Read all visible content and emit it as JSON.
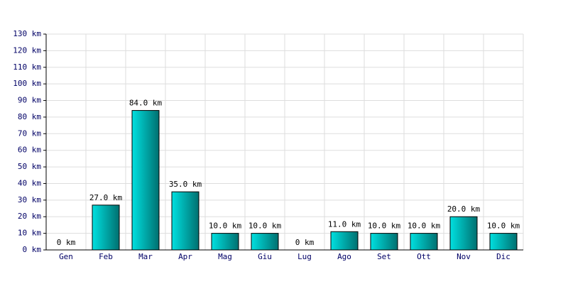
{
  "chart_data": {
    "type": "bar",
    "categories": [
      "Gen",
      "Feb",
      "Mar",
      "Apr",
      "Mag",
      "Giu",
      "Lug",
      "Ago",
      "Set",
      "Ott",
      "Nov",
      "Dic"
    ],
    "values": [
      0,
      27,
      84,
      35,
      10,
      10,
      0,
      11,
      10,
      10,
      20,
      10
    ],
    "value_labels": [
      "0 km",
      "27.0 km",
      "84.0 km",
      "35.0 km",
      "10.0 km",
      "10.0 km",
      "0 km",
      "11.0 km",
      "10.0 km",
      "10.0 km",
      "20.0 km",
      "10.0 km"
    ],
    "color": "#00e0e0",
    "ylim": [
      0,
      130
    ],
    "yticks": [
      {
        "value": 0,
        "label": "0 km"
      },
      {
        "value": 10,
        "label": "10 km"
      },
      {
        "value": 20,
        "label": "20 km"
      },
      {
        "value": 30,
        "label": "30 km"
      },
      {
        "value": 40,
        "label": "40 km"
      },
      {
        "value": 50,
        "label": "50 km"
      },
      {
        "value": 60,
        "label": "60 km"
      },
      {
        "value": 70,
        "label": "70 km"
      },
      {
        "value": 80,
        "label": "80 km"
      },
      {
        "value": 90,
        "label": "90 km"
      },
      {
        "value": 100,
        "label": "100 km"
      },
      {
        "value": 110,
        "label": "110 km"
      },
      {
        "value": 120,
        "label": "120 km"
      },
      {
        "value": 130,
        "label": "130 km"
      }
    ],
    "grid": true
  }
}
